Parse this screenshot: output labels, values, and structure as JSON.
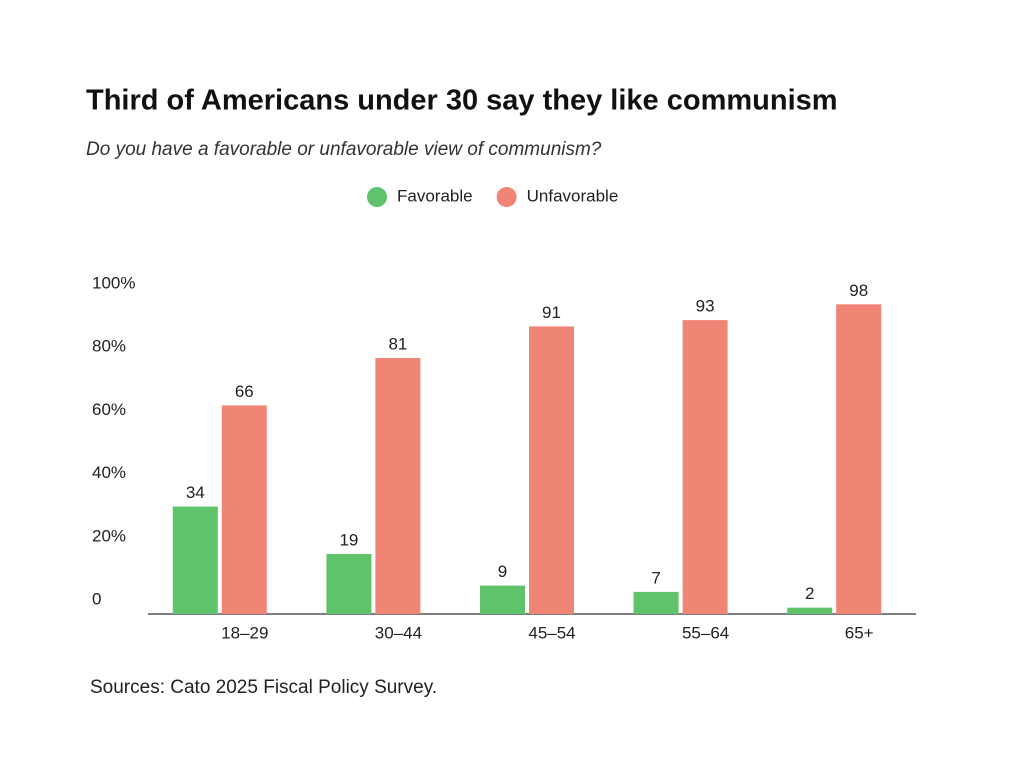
{
  "chart_data": {
    "type": "bar",
    "title": "Third of Americans under 30 say they like communism",
    "subtitle": "Do you have a favorable or unfavorable view of communism?",
    "categories": [
      "18–29",
      "30–44",
      "45–54",
      "55–64",
      "65+"
    ],
    "series": [
      {
        "name": "Favorable",
        "color": "#5fc36b",
        "values": [
          34,
          19,
          9,
          7,
          2
        ]
      },
      {
        "name": "Unfavorable",
        "color": "#f08475",
        "values": [
          66,
          81,
          91,
          93,
          98
        ]
      }
    ],
    "ylim": [
      0,
      100
    ],
    "yticks": [
      0,
      {
        "value": 20,
        "label": "20%"
      },
      {
        "value": 40,
        "label": "40%"
      },
      {
        "value": 60,
        "label": "60%"
      },
      {
        "value": 80,
        "label": "80%"
      },
      {
        "value": 100,
        "label": "100%"
      }
    ],
    "grid": false,
    "legend": "top",
    "source": "Sources: Cato 2025 Fiscal Policy Survey."
  }
}
